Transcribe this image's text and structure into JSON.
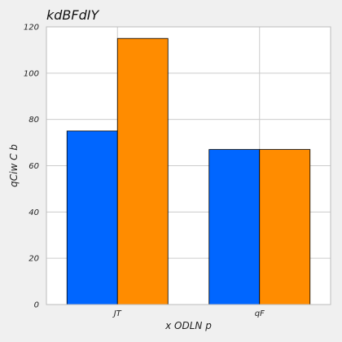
{
  "chart_data": {
    "type": "bar",
    "title": "kdBFdIY",
    "xlabel": "x ODLN  p",
    "ylabel": "qCiw C  b",
    "categories": [
      "JT",
      "qF"
    ],
    "series": [
      {
        "values": [
          75,
          67
        ],
        "color": "#0066ff"
      },
      {
        "values": [
          115,
          67
        ],
        "color": "#ff8c00"
      }
    ],
    "ylim": [
      0,
      120
    ],
    "yticks": [
      0,
      20,
      40,
      60,
      80,
      100,
      120
    ],
    "grid": true,
    "legend": "none"
  },
  "colors": {
    "figure_background": "#f0f0f0",
    "plot_background": "#ffffff",
    "grid": "#cccccc",
    "bar_edge": "#000000"
  }
}
